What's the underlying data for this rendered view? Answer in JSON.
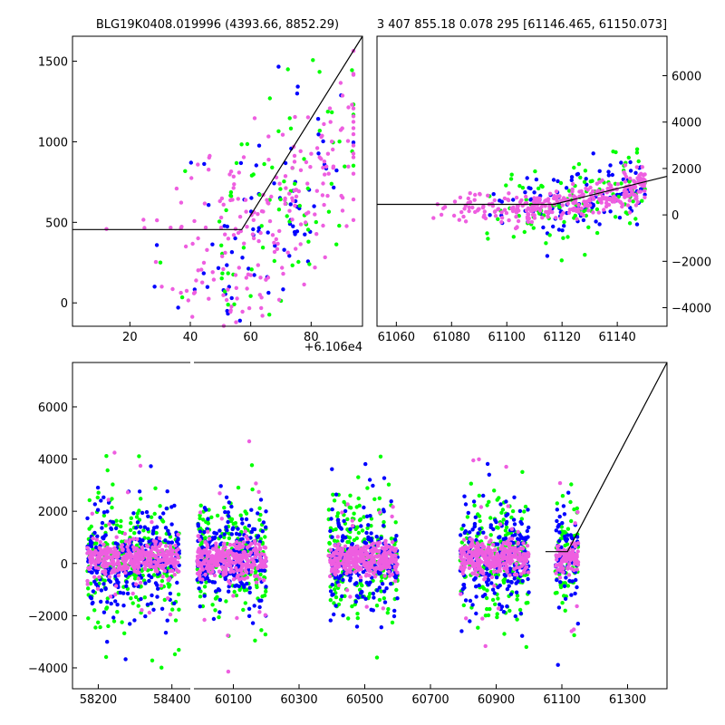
{
  "colors": {
    "blue": "#0000ff",
    "green": "#00ff00",
    "magenta": "#ee5ee0",
    "line": "#000000",
    "frame": "#000000"
  },
  "chart_data": [
    {
      "type": "scatter",
      "title": "BLG19K0408.019996 (4393.66, 8852.29)",
      "x_offset_label": "+6.106e4",
      "xlim": [
        1,
        97
      ],
      "ylim": [
        -145,
        1655
      ],
      "xticks": [
        20,
        40,
        60,
        80
      ],
      "xtick_labels": [
        "20",
        "40",
        "60",
        "80"
      ],
      "yticks": [
        0,
        500,
        1000,
        1500
      ],
      "ytick_labels": [
        "0",
        "500",
        "1000",
        "1500"
      ],
      "series": [
        {
          "color": "blue",
          "n": 80,
          "seed": 11,
          "x_mean": 66,
          "x_sd": 15,
          "slope": 25,
          "base": 450,
          "x0": 57,
          "noise": 330
        },
        {
          "color": "green",
          "n": 80,
          "seed": 23,
          "x_mean": 68,
          "x_sd": 14,
          "slope": 25,
          "base": 450,
          "x0": 57,
          "noise": 330
        },
        {
          "color": "magenta",
          "n": 220,
          "seed": 37,
          "x_mean": 65,
          "x_sd": 17,
          "slope": 25,
          "base": 450,
          "x0": 57,
          "noise": 300
        }
      ],
      "model": {
        "x": [
          1,
          57,
          97
        ],
        "y": [
          455,
          455,
          1660
        ]
      }
    },
    {
      "type": "scatter",
      "title": "3 407 855.18 0.078 295 [61146.465, 61150.073]",
      "xlim": [
        61053,
        61158
      ],
      "ylim": [
        -4800,
        7700
      ],
      "xticks": [
        61060,
        61080,
        61100,
        61120,
        61140
      ],
      "xtick_labels": [
        "61060",
        "61080",
        "61100",
        "61120",
        "61140"
      ],
      "yticks": [
        -4000,
        -2000,
        0,
        2000,
        4000,
        6000
      ],
      "ytick_labels": [
        "−4000",
        "−2000",
        "0",
        "2000",
        "4000",
        "6000"
      ],
      "series": [
        {
          "color": "blue",
          "n": 110,
          "seed": 51,
          "x_min": 61090,
          "x_max": 61150,
          "y_sd": 650
        },
        {
          "color": "green",
          "n": 110,
          "seed": 63,
          "x_min": 61090,
          "x_max": 61150,
          "y_sd": 900
        },
        {
          "color": "magenta",
          "n": 330,
          "seed": 77,
          "x_min": 61073,
          "x_max": 61150,
          "y_sd": 380
        }
      ],
      "model": {
        "x": [
          61053,
          61117,
          61158
        ],
        "y": [
          455,
          455,
          1660
        ]
      }
    },
    {
      "type": "scatter",
      "xlim": [
        58130,
        61420
      ],
      "ylim": [
        -4800,
        7700
      ],
      "axis_break": [
        58450,
        59980
      ],
      "xticks": [
        58200,
        58400,
        60100,
        60300,
        60500,
        60700,
        60900,
        61100,
        61300
      ],
      "xtick_labels": [
        "58200",
        "58400",
        "60100",
        "60300",
        "60500",
        "60700",
        "60900",
        "61100",
        "61300"
      ],
      "yticks": [
        -4000,
        -2000,
        0,
        2000,
        4000,
        6000
      ],
      "ytick_labels": [
        "−4000",
        "−2000",
        "0",
        "2000",
        "4000",
        "6000"
      ],
      "seasons": [
        {
          "start": 58170,
          "end": 58420,
          "seed": 101
        },
        {
          "start": 59990,
          "end": 60200,
          "seed": 202
        },
        {
          "start": 60390,
          "end": 60600,
          "seed": 303
        },
        {
          "start": 60790,
          "end": 61000,
          "seed": 404
        },
        {
          "start": 61080,
          "end": 61150,
          "seed": 505
        }
      ],
      "model": {
        "x": [
          61050,
          61117,
          61420
        ],
        "y": [
          455,
          455,
          7700
        ]
      }
    }
  ]
}
